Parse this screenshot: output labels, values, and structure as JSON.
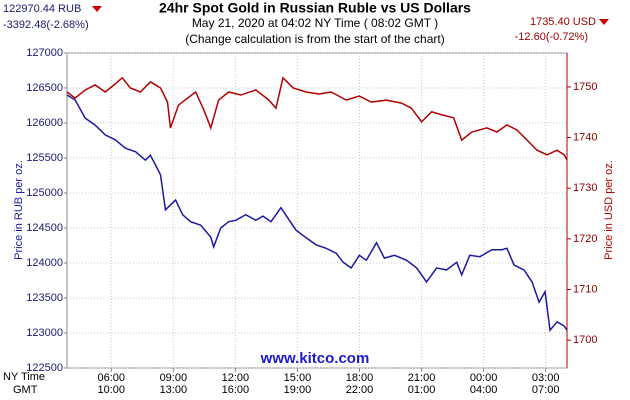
{
  "chart_data": {
    "type": "line",
    "title": "24hr Spot Gold in Russian Ruble vs US Dollars",
    "subtitle": "May 21, 2020 at 04:02 NY Time ( 08:02 GMT )",
    "note": "(Change calculation is from the start of the chart)",
    "rub_price": "122970.44 RUB",
    "rub_change": "-3392.48(-2.68%)",
    "usd_price": "1735.40 USD",
    "usd_change": "-12.60(-0.72%)",
    "watermark": "www.kitco.com",
    "ylabel": "Price in RUB per oz.",
    "y2label": "Price in USD per oz.",
    "xlabel": "NY Time",
    "x2label": "GMT",
    "xlim": [
      3.86,
      28.03
    ],
    "xticks": [
      {
        "value": 6,
        "label": "06:00"
      },
      {
        "value": 9,
        "label": "09:00"
      },
      {
        "value": 12,
        "label": "12:00"
      },
      {
        "value": 15,
        "label": "15:00"
      },
      {
        "value": 18,
        "label": "18:00"
      },
      {
        "value": 21,
        "label": "21:00"
      },
      {
        "value": 24,
        "label": "00:00"
      },
      {
        "value": 27,
        "label": "03:00"
      }
    ],
    "x_gmt_labels": [
      "10:00",
      "13:00",
      "16:00",
      "19:00",
      "22:00",
      "01:00",
      "04:00",
      "07:00"
    ],
    "ylim": [
      122500,
      127000
    ],
    "yticks": [
      122500,
      123000,
      123500,
      124000,
      124500,
      125000,
      125500,
      126000,
      126500,
      127000
    ],
    "y2lim": [
      1694.5,
      1756.7
    ],
    "y2ticks": [
      1700,
      1710,
      1720,
      1730,
      1740,
      1750
    ],
    "grid": true,
    "series": [
      {
        "color": "#1a1aa0",
        "x": [
          3.86,
          4.25,
          4.74,
          5.22,
          5.71,
          6.19,
          6.68,
          7.17,
          7.65,
          7.89,
          8.14,
          8.38,
          8.62,
          9.11,
          9.45,
          9.83,
          10.32,
          10.81,
          10.95,
          11.29,
          11.68,
          12.02,
          12.5,
          12.99,
          13.33,
          13.72,
          14.2,
          14.54,
          14.93,
          15.42,
          15.9,
          16.39,
          16.87,
          17.21,
          17.6,
          17.99,
          18.33,
          18.82,
          19.2,
          19.69,
          20.27,
          20.76,
          21.24,
          21.73,
          22.21,
          22.7,
          22.94,
          23.33,
          23.82,
          24.4,
          24.88,
          25.13,
          25.47,
          25.95,
          26.34,
          26.68,
          26.97,
          27.21,
          27.55,
          27.89,
          28.03
        ],
        "values": [
          126400,
          126330,
          126070,
          125970,
          125830,
          125760,
          125640,
          125590,
          125470,
          125540,
          125400,
          125260,
          124760,
          124900,
          124690,
          124590,
          124540,
          124370,
          124230,
          124500,
          124590,
          124610,
          124690,
          124610,
          124670,
          124590,
          124790,
          124640,
          124470,
          124360,
          124260,
          124210,
          124140,
          124010,
          123930,
          124110,
          124040,
          124290,
          124070,
          124110,
          124040,
          123930,
          123730,
          123930,
          123900,
          124010,
          123830,
          124110,
          124090,
          124190,
          124190,
          124210,
          123970,
          123900,
          123730,
          123440,
          123590,
          123040,
          123160,
          123100,
          123040
        ]
      },
      {
        "color": "#b00000",
        "axis": "y2",
        "x": [
          3.86,
          4.25,
          4.74,
          5.22,
          5.71,
          6.19,
          6.53,
          6.92,
          7.41,
          7.89,
          8.38,
          8.72,
          8.86,
          9.25,
          9.69,
          10.08,
          10.47,
          10.81,
          11.19,
          11.68,
          12.26,
          12.99,
          13.62,
          13.96,
          14.3,
          14.79,
          15.42,
          16.05,
          16.63,
          17.36,
          17.99,
          18.57,
          19.3,
          20.03,
          20.51,
          21.0,
          21.49,
          21.97,
          22.55,
          22.94,
          23.43,
          24.16,
          24.64,
          25.13,
          25.61,
          26.1,
          26.58,
          27.07,
          27.55,
          27.89,
          28.03
        ],
        "values": [
          1749.0,
          1747.8,
          1749.4,
          1750.4,
          1749.0,
          1750.6,
          1751.8,
          1749.8,
          1749.0,
          1751.0,
          1749.8,
          1747.0,
          1741.9,
          1746.4,
          1747.8,
          1749.0,
          1745.5,
          1741.9,
          1747.4,
          1749.0,
          1748.4,
          1749.4,
          1747.4,
          1745.8,
          1751.8,
          1749.8,
          1749.0,
          1748.6,
          1749.0,
          1747.4,
          1748.2,
          1747.0,
          1747.4,
          1746.8,
          1745.8,
          1743.1,
          1745.1,
          1744.5,
          1743.9,
          1739.5,
          1741.1,
          1741.9,
          1741.1,
          1742.5,
          1741.5,
          1739.5,
          1737.5,
          1736.6,
          1737.5,
          1736.6,
          1735.6
        ]
      }
    ]
  }
}
